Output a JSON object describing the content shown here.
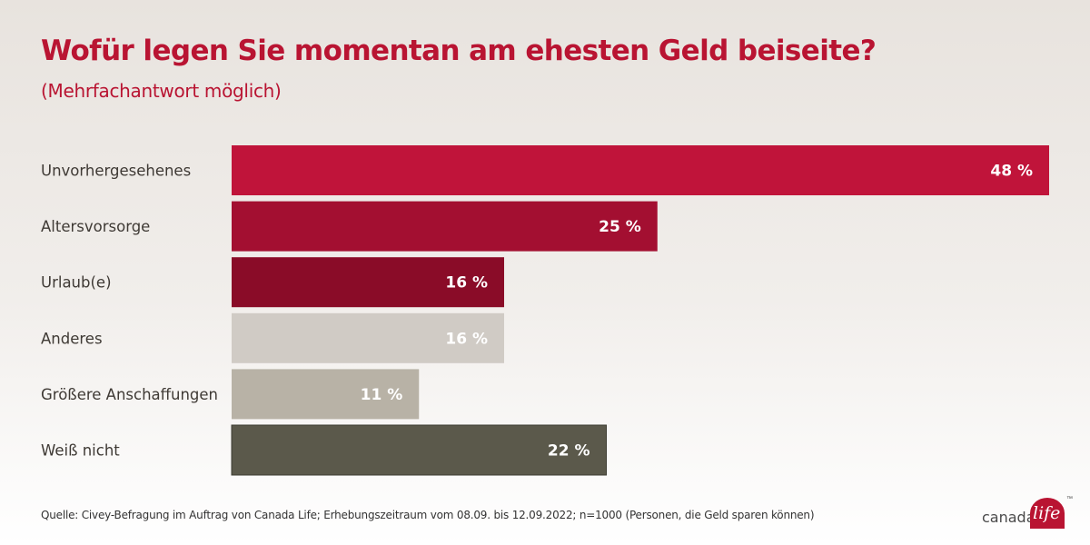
{
  "title": "Wofür legen Sie momentan am ehesten Geld beiseite?",
  "subtitle": "(Mehrfachantwort möglich)",
  "source": "Quelle: Civey-Befragung im Auftrag von Canada Life; Erhebungszeitraum vom 08.09. bis 12.09.2022; n=1000 (Personen, die Geld sparen können)",
  "logo": {
    "text": "canada",
    "badge_text": "life",
    "tm": "™"
  },
  "chart_data": {
    "type": "bar",
    "orientation": "horizontal",
    "categories": [
      "Unvorhergesehenes",
      "Altersvorsorge",
      "Urlaub(e)",
      "Anderes",
      "Größere Anschaffungen",
      "Weiß nicht"
    ],
    "values": [
      48,
      25,
      16,
      16,
      11,
      22
    ],
    "value_labels": [
      "48 %",
      "25 %",
      "16 %",
      "16 %",
      "11 %",
      "22 %"
    ],
    "colors": [
      "#c0143a",
      "#a30f31",
      "#8a0c28",
      "#d0cbc5",
      "#b8b2a6",
      "#5b594b"
    ],
    "xlim": [
      0,
      48
    ],
    "grid": false,
    "legend": "none"
  }
}
